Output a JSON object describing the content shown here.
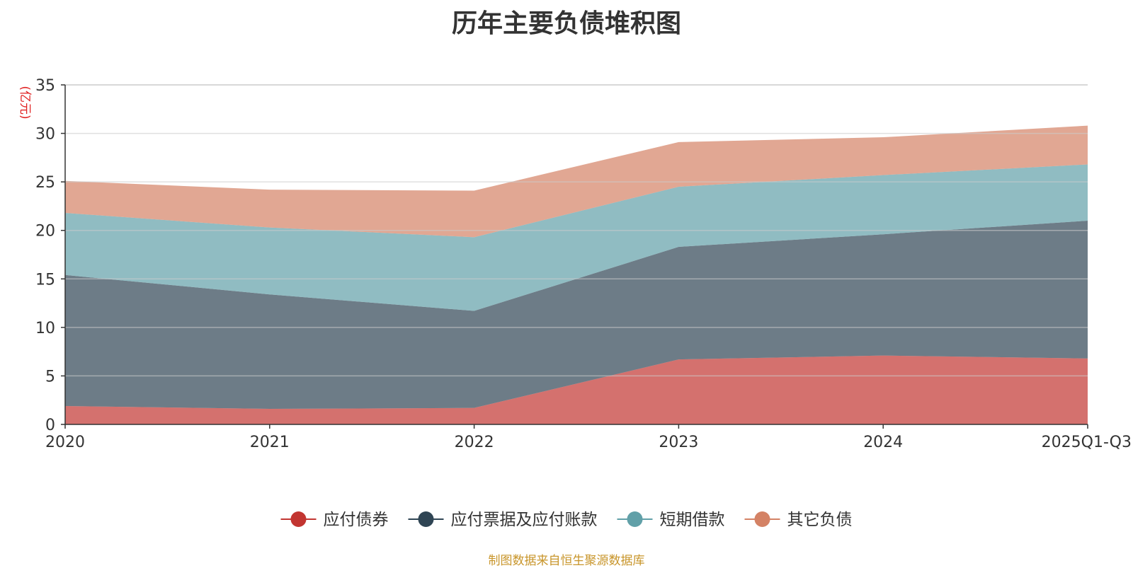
{
  "chart_data": {
    "type": "area",
    "stacked": true,
    "title": "历年主要负债堆积图",
    "ylabel": "(亿元)",
    "xlabel": "",
    "categories": [
      "2020",
      "2021",
      "2022",
      "2023",
      "2024",
      "2025Q1-Q3"
    ],
    "ylim": [
      0,
      35
    ],
    "yticks": [
      0,
      5,
      10,
      15,
      20,
      25,
      30,
      35
    ],
    "grid": true,
    "legend_position": "bottom",
    "series": [
      {
        "name": "应付债券",
        "color": "#c23531",
        "values": [
          1.9,
          1.6,
          1.7,
          6.7,
          7.1,
          6.8
        ]
      },
      {
        "name": "应付票据及应付账款",
        "color": "#2f4554",
        "values": [
          13.5,
          11.8,
          10.0,
          11.6,
          12.5,
          14.2
        ]
      },
      {
        "name": "短期借款",
        "color": "#61a0a8",
        "values": [
          6.4,
          6.9,
          7.6,
          6.2,
          6.1,
          5.8
        ]
      },
      {
        "name": "其它负债",
        "color": "#d48265",
        "values": [
          3.3,
          3.9,
          4.8,
          4.6,
          3.9,
          4.0
        ]
      }
    ]
  },
  "footer": {
    "source": "制图数据来自恒生聚源数据库"
  },
  "colors": {
    "unit_label": "#e02020",
    "source_note": "#c8952a",
    "grid": "#cccccc",
    "axis": "#333333"
  }
}
